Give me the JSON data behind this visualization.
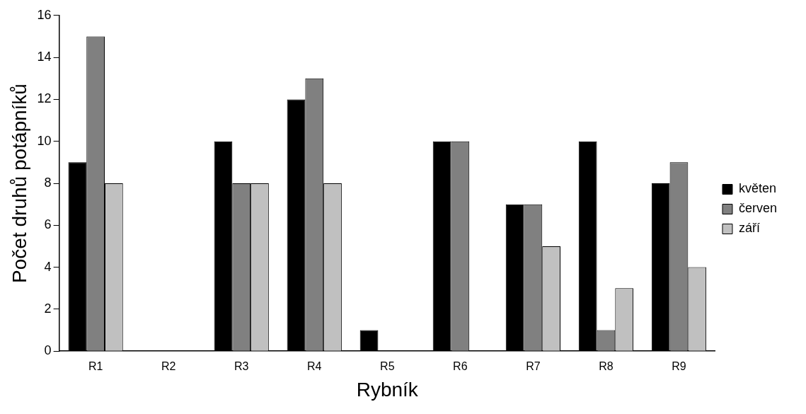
{
  "chart_data": {
    "type": "bar",
    "xlabel": "Rybník",
    "ylabel": "Počet druhů potápníků",
    "categories": [
      "R1",
      "R2",
      "R3",
      "R4",
      "R5",
      "R6",
      "R7",
      "R8",
      "R9"
    ],
    "series": [
      {
        "name": "květen",
        "color": "#000000",
        "values": [
          9,
          0,
          10,
          12,
          1,
          10,
          7,
          10,
          8
        ]
      },
      {
        "name": "červen",
        "color": "#808080",
        "values": [
          15,
          0,
          8,
          13,
          0,
          10,
          7,
          1,
          9
        ]
      },
      {
        "name": "září",
        "color": "#c0c0c0",
        "values": [
          8,
          0,
          8,
          8,
          0,
          0,
          5,
          3,
          4
        ]
      }
    ],
    "ylim": [
      0,
      16
    ],
    "yticks": [
      0,
      2,
      4,
      6,
      8,
      10,
      12,
      14,
      16
    ],
    "grid": false,
    "legend": "right"
  }
}
